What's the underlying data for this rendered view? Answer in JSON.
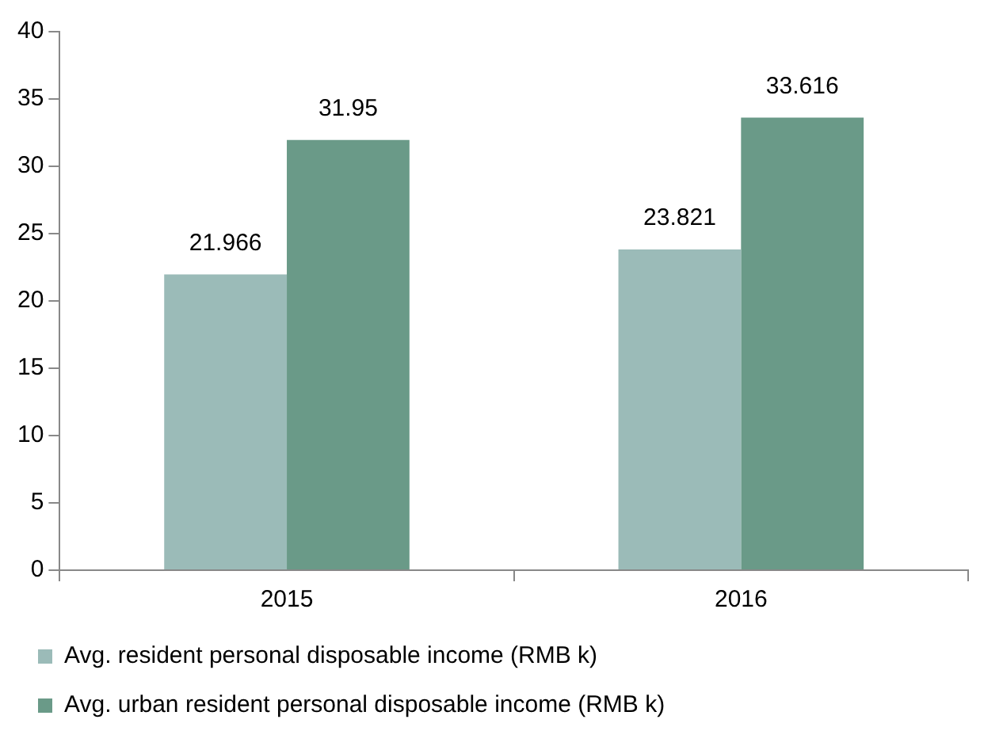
{
  "chart_data": {
    "type": "bar",
    "categories": [
      "2015",
      "2016"
    ],
    "series": [
      {
        "name": "Avg. resident personal disposable income (RMB k)",
        "color": "#9bbbb8",
        "values": [
          21.966,
          23.821
        ]
      },
      {
        "name": "Avg. urban resident personal disposable income (RMB k)",
        "color": "#6a9a88",
        "values": [
          31.95,
          33.616
        ]
      }
    ],
    "ylim": [
      0,
      40
    ],
    "yticks": [
      0,
      5,
      10,
      15,
      20,
      25,
      30,
      35,
      40
    ],
    "grid": false,
    "legend": "bottom",
    "data_labels": true
  }
}
